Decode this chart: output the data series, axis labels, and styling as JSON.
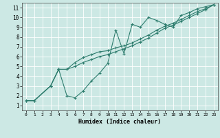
{
  "xlabel": "Humidex (Indice chaleur)",
  "bg_color": "#cce8e4",
  "line_color": "#2e7d6e",
  "grid_color": "#ffffff",
  "xlim": [
    -0.5,
    23.5
  ],
  "ylim": [
    0.5,
    11.5
  ],
  "xticks": [
    0,
    1,
    2,
    3,
    4,
    5,
    6,
    7,
    8,
    9,
    10,
    11,
    12,
    13,
    14,
    15,
    16,
    17,
    18,
    19,
    20,
    21,
    22,
    23
  ],
  "yticks": [
    1,
    2,
    3,
    4,
    5,
    6,
    7,
    8,
    9,
    10,
    11
  ],
  "line1_x": [
    0,
    1,
    3,
    4,
    4,
    5,
    6,
    7,
    8,
    9,
    10,
    11,
    12,
    13,
    14,
    15,
    16,
    17,
    18,
    19,
    20,
    21,
    22,
    23
  ],
  "line1_y": [
    1.5,
    1.5,
    3.0,
    4.7,
    4.7,
    2.0,
    1.8,
    2.5,
    3.5,
    4.3,
    5.3,
    8.7,
    6.3,
    9.3,
    9.0,
    10.0,
    9.7,
    9.3,
    9.0,
    10.2,
    10.5,
    10.9,
    11.1,
    11.3
  ],
  "line2_x": [
    0,
    1,
    3,
    4,
    5,
    6,
    7,
    8,
    9,
    10,
    11,
    12,
    13,
    14,
    15,
    16,
    17,
    18,
    19,
    20,
    21,
    22,
    23
  ],
  "line2_y": [
    1.5,
    1.5,
    3.0,
    4.7,
    4.7,
    5.4,
    5.9,
    6.2,
    6.5,
    6.6,
    6.9,
    7.1,
    7.4,
    7.8,
    8.2,
    8.7,
    9.1,
    9.4,
    9.8,
    10.2,
    10.6,
    10.9,
    11.3
  ],
  "line3_x": [
    0,
    1,
    3,
    4,
    5,
    6,
    7,
    8,
    9,
    10,
    11,
    12,
    13,
    14,
    15,
    16,
    17,
    18,
    19,
    20,
    21,
    22,
    23
  ],
  "line3_y": [
    1.5,
    1.5,
    3.0,
    4.7,
    4.7,
    5.0,
    5.4,
    5.7,
    6.0,
    6.2,
    6.5,
    6.8,
    7.1,
    7.5,
    7.9,
    8.4,
    8.9,
    9.2,
    9.6,
    10.0,
    10.4,
    10.8,
    11.3
  ]
}
